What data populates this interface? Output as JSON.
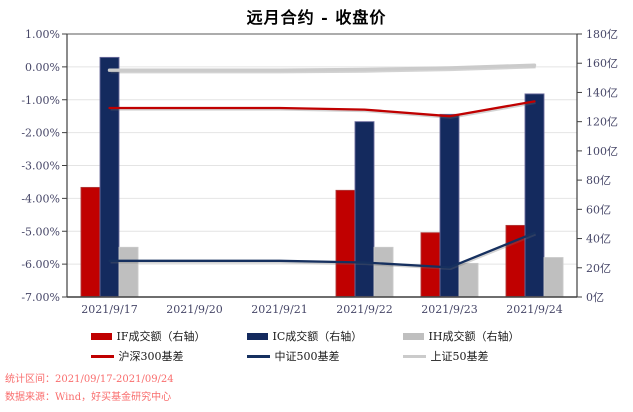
{
  "title": "远月合约 - 收盘价",
  "footer": {
    "line1": "统计区间：2021/09/17-2021/09/24",
    "line2": "数据来源：Wind，好买基金研究中心"
  },
  "colors": {
    "red": "#c00000",
    "navy": "#142a5e",
    "navy_edge": "#6b6b9c",
    "gray_bar": "#bfbfbf",
    "gray_bar_edge": "#c9c9c9",
    "gray_line": "#cbcbcb",
    "axis_text": "#474768",
    "grid": "#e4e4e4",
    "spine": "#595959",
    "footer_text": "#f96e6e",
    "legend_text": "#1a1a1a"
  },
  "chart_data": {
    "type": "combo-bar-line",
    "title": "远月合约 - 收盘价",
    "categories": [
      "2021/9/17",
      "2021/9/20",
      "2021/9/21",
      "2021/9/22",
      "2021/9/23",
      "2021/9/24"
    ],
    "left_axis": {
      "unit": "%",
      "min": -7,
      "max": 1,
      "step": 1,
      "ticks": [
        "1.00%",
        "0.00%",
        "-1.00%",
        "-2.00%",
        "-3.00%",
        "-4.00%",
        "-5.00%",
        "-6.00%",
        "-7.00%"
      ]
    },
    "right_axis": {
      "unit": "亿",
      "min": 0,
      "max": 180,
      "step": 20,
      "ticks": [
        "180亿",
        "160亿",
        "140亿",
        "120亿",
        "100亿",
        "80亿",
        "60亿",
        "40亿",
        "20亿",
        "0亿"
      ]
    },
    "grid": "horizontal-left-ticks",
    "legend_position": "bottom",
    "bar_series": [
      {
        "id": "if-volume",
        "name": "IF成交额（右轴）",
        "axis": "right",
        "color": "#c00000",
        "edge": "#b03a3a",
        "values": [
          75,
          null,
          null,
          73,
          44,
          49
        ]
      },
      {
        "id": "ic-volume",
        "name": "IC成交额（右轴）",
        "axis": "right",
        "color": "#142a5e",
        "edge": "#6b6b9c",
        "values": [
          164,
          null,
          null,
          120,
          125,
          139
        ]
      },
      {
        "id": "ih-volume",
        "name": "IH成交额（右轴）",
        "axis": "right",
        "color": "#bfbfbf",
        "edge": "#c9c9c9",
        "values": [
          34,
          null,
          null,
          34,
          23,
          27
        ]
      }
    ],
    "line_series": [
      {
        "id": "hs300-basis",
        "name": "沪深300基差",
        "axis": "left",
        "color": "#c00000",
        "width": 2.3,
        "values": [
          -1.25,
          -1.25,
          -1.25,
          -1.3,
          -1.5,
          -1.05
        ]
      },
      {
        "id": "zz500-basis",
        "name": "中证500基差",
        "axis": "left",
        "color": "#16305f",
        "width": 2.3,
        "values": [
          -5.9,
          -5.9,
          -5.9,
          -5.95,
          -6.1,
          -5.05
        ]
      },
      {
        "id": "sz50-basis",
        "name": "上证50基差",
        "axis": "left",
        "color": "#cbcbcb",
        "width": 3.4,
        "values": [
          -0.1,
          -0.1,
          -0.1,
          -0.08,
          -0.03,
          0.05
        ]
      }
    ]
  }
}
